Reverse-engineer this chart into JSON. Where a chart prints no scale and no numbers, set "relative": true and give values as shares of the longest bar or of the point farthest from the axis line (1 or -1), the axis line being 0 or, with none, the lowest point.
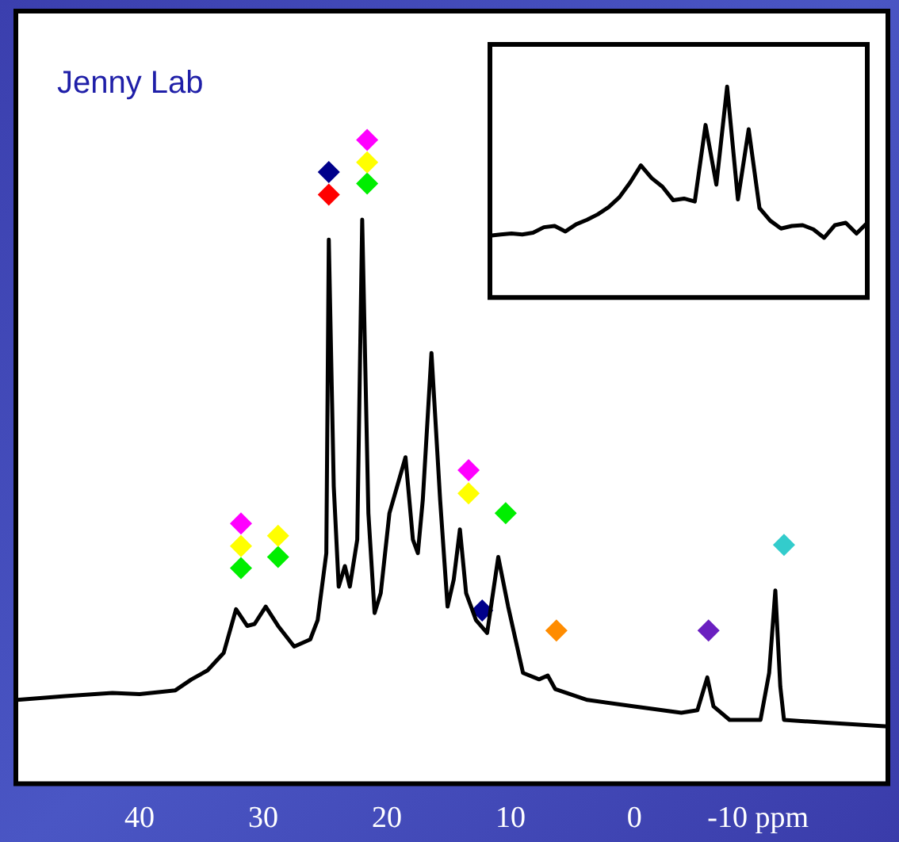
{
  "chart_data": [
    {
      "type": "line",
      "relative": true,
      "annotations": [
        "Jenny Lab"
      ],
      "xlim": [
        50,
        -20.5
      ],
      "xticks": [
        40,
        30,
        20,
        10,
        0,
        {
          "value": -10,
          "label": "-10 ppm"
        }
      ],
      "series": [
        {
          "color": "#000000",
          "marker": "none",
          "x": [
            49.9,
            46.0,
            42.2,
            40.0,
            37.1,
            35.8,
            34.5,
            33.2,
            32.2,
            31.3,
            30.7,
            29.8,
            28.8,
            27.5,
            26.2,
            25.6,
            24.9,
            24.7,
            24.3,
            23.9,
            23.4,
            23.0,
            22.4,
            22.0,
            21.5,
            21.0,
            20.5,
            19.8,
            18.5,
            17.9,
            17.5,
            17.1,
            16.4,
            15.7,
            15.1,
            14.6,
            14.1,
            13.6,
            12.8,
            11.9,
            11.0,
            10.2,
            9.0,
            7.7,
            7.0,
            6.4,
            3.8,
            0,
            -3.8,
            -5.1,
            -5.9,
            -6.4,
            -7.7,
            -10.2,
            -10.9,
            -11.4,
            -11.8,
            -12.1,
            -15.3,
            -20.5
          ],
          "values": [
            0.13,
            0.136,
            0.141,
            0.139,
            0.145,
            0.162,
            0.176,
            0.203,
            0.271,
            0.245,
            0.248,
            0.275,
            0.245,
            0.213,
            0.224,
            0.254,
            0.358,
            0.845,
            0.462,
            0.306,
            0.338,
            0.306,
            0.379,
            0.876,
            0.42,
            0.265,
            0.296,
            0.42,
            0.507,
            0.379,
            0.358,
            0.441,
            0.669,
            0.441,
            0.275,
            0.317,
            0.395,
            0.296,
            0.254,
            0.234,
            0.352,
            0.275,
            0.172,
            0.162,
            0.168,
            0.147,
            0.13,
            0.12,
            0.11,
            0.114,
            0.165,
            0.12,
            0.099,
            0.099,
            0.172,
            0.3,
            0.151,
            0.099,
            0.095,
            0.089
          ]
        },
        {
          "type": "scatter",
          "color": "#ff00ff",
          "marker": "diamond",
          "x": [
            31.8,
            13.4,
            21.6
          ],
          "values": [
            0.404,
            0.487,
            1.0
          ]
        },
        {
          "type": "scatter",
          "color": "#ffff00",
          "marker": "diamond",
          "x": [
            31.8,
            28.8,
            21.6,
            13.4
          ],
          "values": [
            0.369,
            0.385,
            0.965,
            0.451
          ]
        },
        {
          "type": "scatter",
          "color": "#00ee00",
          "marker": "diamond",
          "x": [
            31.8,
            28.8,
            21.6,
            10.4
          ],
          "values": [
            0.335,
            0.352,
            0.932,
            0.42
          ]
        },
        {
          "type": "scatter",
          "color": "#00008b",
          "marker": "diamond",
          "x": [
            24.7,
            12.3
          ],
          "values": [
            0.95,
            0.269
          ]
        },
        {
          "type": "scatter",
          "color": "#ff0000",
          "marker": "diamond",
          "x": [
            24.7
          ],
          "values": [
            0.915
          ]
        },
        {
          "type": "scatter",
          "color": "#ff8c00",
          "marker": "diamond",
          "x": [
            6.3
          ],
          "values": [
            0.238
          ]
        },
        {
          "type": "scatter",
          "color": "#6a1fc0",
          "marker": "diamond",
          "x": [
            -6.0
          ],
          "values": [
            0.238
          ]
        },
        {
          "type": "scatter",
          "color": "#33cccc",
          "marker": "diamond",
          "x": [
            -12.1
          ],
          "values": [
            0.371
          ]
        }
      ]
    },
    {
      "type": "line",
      "relative": true,
      "categories": [
        null,
        null,
        null,
        null,
        null,
        null,
        null,
        null,
        null,
        null,
        null,
        null,
        null,
        null,
        null,
        null,
        null,
        null,
        null,
        null,
        null,
        null,
        null,
        null,
        null,
        null,
        null,
        null,
        null,
        null,
        null,
        null,
        null,
        null,
        null,
        null
      ],
      "series": [
        {
          "color": "#000000",
          "marker": "none",
          "values": [
            0.293,
            0.299,
            0.303,
            0.299,
            0.307,
            0.333,
            0.339,
            0.313,
            0.347,
            0.368,
            0.394,
            0.428,
            0.475,
            0.545,
            0.626,
            0.566,
            0.525,
            0.461,
            0.469,
            0.455,
            0.818,
            0.535,
            1,
            0.465,
            0.798,
            0.424,
            0.364,
            0.327,
            0.339,
            0.343,
            0.323,
            0.283,
            0.343,
            0.354,
            0.303,
            0.354
          ]
        }
      ]
    }
  ]
}
